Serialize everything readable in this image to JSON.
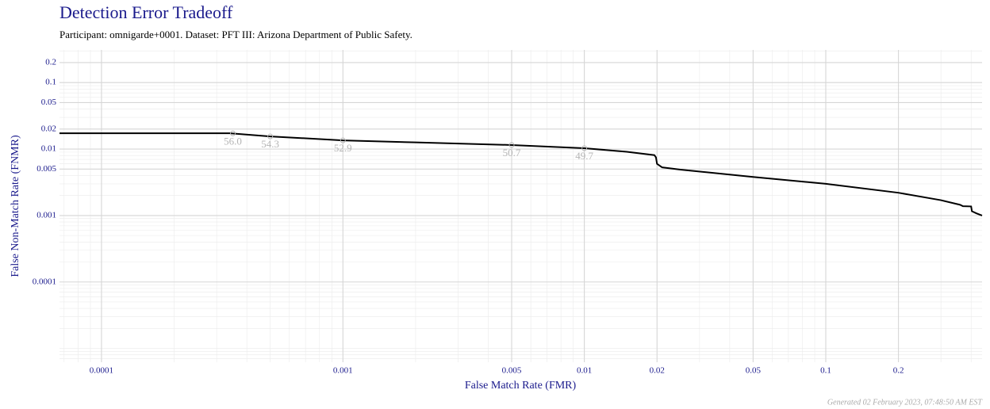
{
  "chart_data": {
    "type": "line",
    "title": "Detection Error Tradeoff",
    "subtitle": "Participant: omnigarde+0001. Dataset: PFT III: Arizona Department of Public Safety.",
    "x_label": "False Match Rate (FMR)",
    "y_label": "False Non-Match Rate (FNMR)",
    "footer": "Generated 02 February 2023, 07:48:50 AM EST",
    "x_scale": "log",
    "y_scale": "log",
    "grid": true,
    "color": "#000000",
    "xlim": [
      6.7e-05,
      0.444
    ],
    "ylim": [
      6.2e-06,
      0.31
    ],
    "xticks": [
      0.0001,
      0.001,
      0.005,
      0.01,
      0.02,
      0.05,
      0.1,
      0.2
    ],
    "yticks": [
      0.0001,
      0.001,
      0.005,
      0.01,
      0.02,
      0.05,
      0.1,
      0.2
    ],
    "x": [
      6.7e-05,
      0.00034,
      0.0005,
      0.001,
      0.002,
      0.005,
      0.01,
      0.015,
      0.0195,
      0.0198,
      0.02,
      0.021,
      0.025,
      0.05,
      0.1,
      0.2,
      0.3,
      0.36,
      0.37,
      0.4,
      0.403,
      0.42,
      0.444
    ],
    "values": [
      0.0173,
      0.0173,
      0.0155,
      0.0135,
      0.0126,
      0.0115,
      0.0103,
      0.0091,
      0.0081,
      0.0075,
      0.006,
      0.0053,
      0.0049,
      0.0038,
      0.003,
      0.0022,
      0.0017,
      0.00145,
      0.00138,
      0.00137,
      0.00116,
      0.00108,
      0.001
    ],
    "annotations": [
      {
        "x": 0.00035,
        "y": 0.0172,
        "label": "56.0"
      },
      {
        "x": 0.0005,
        "y": 0.0155,
        "label": "54.3"
      },
      {
        "x": 0.001,
        "y": 0.0135,
        "label": "52.9"
      },
      {
        "x": 0.005,
        "y": 0.0115,
        "label": "50.7"
      },
      {
        "x": 0.01,
        "y": 0.0103,
        "label": "49.7"
      }
    ]
  }
}
